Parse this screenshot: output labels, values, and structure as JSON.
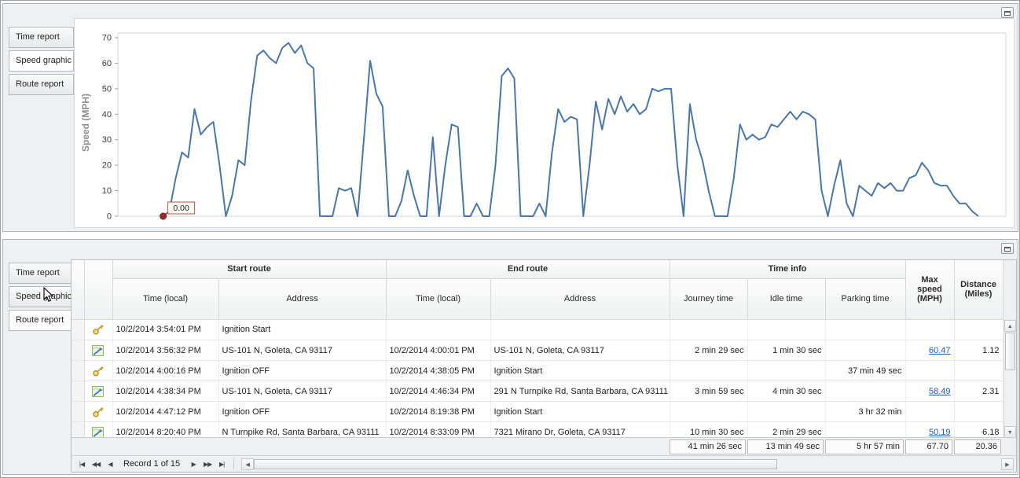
{
  "top_panel": {
    "tabs": [
      {
        "id": "time-report",
        "label": "Time report",
        "selected": false
      },
      {
        "id": "speed-graphic",
        "label": "Speed graphic",
        "selected": true
      },
      {
        "id": "route-report",
        "label": "Route report",
        "selected": false
      }
    ]
  },
  "chart_data": {
    "type": "line",
    "title": "",
    "xlabel": "",
    "ylabel": "Speed (MPH)",
    "ylim": [
      0,
      70
    ],
    "yticks": [
      0,
      10,
      20,
      30,
      40,
      50,
      60,
      70
    ],
    "grid": "off",
    "legend": "none",
    "series": [
      {
        "name": "Speed",
        "color": "#4a76a8",
        "values": [
          0,
          2,
          15,
          25,
          23,
          42,
          32,
          35,
          37,
          20,
          0,
          8,
          22,
          20,
          45,
          63,
          65,
          62,
          60,
          66,
          68,
          64,
          67,
          60,
          58,
          0,
          0,
          0,
          11,
          10,
          11,
          0,
          30,
          61,
          48,
          43,
          0,
          0,
          6,
          18,
          8,
          0,
          0,
          31,
          0,
          20,
          36,
          35,
          0,
          0,
          5,
          0,
          0,
          20,
          55,
          58,
          54,
          0,
          0,
          0,
          5,
          0,
          25,
          42,
          37,
          39,
          38,
          0,
          20,
          45,
          34,
          46,
          40,
          47,
          41,
          44,
          40,
          42,
          50,
          49,
          50,
          50,
          20,
          0,
          44,
          30,
          22,
          10,
          0,
          0,
          0,
          15,
          36,
          30,
          32,
          30,
          31,
          36,
          35,
          38,
          41,
          38,
          41,
          40,
          38,
          10,
          0,
          12,
          22,
          5,
          0,
          12,
          10,
          8,
          13,
          11,
          13,
          10,
          10,
          15,
          16,
          21,
          18,
          13,
          12,
          12,
          8,
          5,
          5,
          2,
          0
        ]
      }
    ],
    "annotation": {
      "label": "0.00",
      "point_index": 0,
      "marker_color": "#9e2b25"
    }
  },
  "bottom_panel": {
    "tabs": [
      {
        "id": "time-report",
        "label": "Time report",
        "selected": false
      },
      {
        "id": "speed-graphic",
        "label": "Speed graphic",
        "selected": false
      },
      {
        "id": "route-report",
        "label": "Route report",
        "selected": true
      }
    ],
    "grid": {
      "group_headers": [
        "Start route",
        "End route",
        "Time info"
      ],
      "columns": [
        "Time (local)",
        "Address",
        "Time (local)",
        "Address",
        "Journey time",
        "Idle time",
        "Parking time",
        "Max speed (MPH)",
        "Distance (Miles)"
      ],
      "rows": [
        {
          "type": "key",
          "max_speed_link": false,
          "cells": {
            "start_time": "10/2/2014 3:54:01 PM",
            "start_address": "Ignition Start",
            "end_time": "",
            "end_address": "",
            "journey_time": "",
            "idle_time": "",
            "parking_time": "",
            "max_speed": "",
            "distance": ""
          }
        },
        {
          "type": "route",
          "max_speed_link": true,
          "cells": {
            "start_time": "10/2/2014 3:56:32 PM",
            "start_address": "US-101 N, Goleta, CA 93117",
            "end_time": "10/2/2014 4:00:01 PM",
            "end_address": "US-101 N, Goleta, CA 93117",
            "journey_time": "2 min 29 sec",
            "idle_time": "1 min 30 sec",
            "parking_time": "",
            "max_speed": "60.47",
            "distance": "1.12"
          }
        },
        {
          "type": "key",
          "max_speed_link": false,
          "cells": {
            "start_time": "10/2/2014 4:00:16 PM",
            "start_address": "Ignition OFF",
            "end_time": "10/2/2014 4:38:05 PM",
            "end_address": "Ignition Start",
            "journey_time": "",
            "idle_time": "",
            "parking_time": "37 min 49 sec",
            "max_speed": "",
            "distance": ""
          }
        },
        {
          "type": "route",
          "max_speed_link": true,
          "cells": {
            "start_time": "10/2/2014 4:38:34 PM",
            "start_address": "US-101 N, Goleta, CA 93117",
            "end_time": "10/2/2014 4:46:34 PM",
            "end_address": "291 N Turnpike Rd, Santa Barbara, CA 93111",
            "journey_time": "3 min 59 sec",
            "idle_time": "4 min 30 sec",
            "parking_time": "",
            "max_speed": "58.49",
            "distance": "2.31"
          }
        },
        {
          "type": "key",
          "max_speed_link": false,
          "cells": {
            "start_time": "10/2/2014 4:47:12 PM",
            "start_address": "Ignition OFF",
            "end_time": "10/2/2014 8:19:38 PM",
            "end_address": "Ignition Start",
            "journey_time": "",
            "idle_time": "",
            "parking_time": "3 hr 32 min",
            "max_speed": "",
            "distance": ""
          }
        },
        {
          "type": "route",
          "max_speed_link": true,
          "cells": {
            "start_time": "10/2/2014 8:20:40 PM",
            "start_address": "N Turnpike Rd, Santa Barbara, CA 93111",
            "end_time": "10/2/2014 8:33:09 PM",
            "end_address": "7321 Mirano Dr, Goleta, CA 93117",
            "journey_time": "10 min 30 sec",
            "idle_time": "2 min 29 sec",
            "parking_time": "",
            "max_speed": "50.19",
            "distance": "6.18"
          }
        }
      ],
      "summary": {
        "journey_time": "41 min 26 sec",
        "idle_time": "13 min 49 sec",
        "parking_time": "5 hr 57 min",
        "max_speed": "67.70",
        "distance": "20.36"
      },
      "navigator": {
        "buttons": [
          "|◀",
          "◀◀",
          "◀",
          "▶",
          "▶▶",
          "▶|"
        ],
        "label": "Record 1 of 15"
      }
    }
  },
  "icons": {
    "scroll_up": "▲",
    "scroll_down": "▼",
    "scroll_left": "◀",
    "scroll_right": "▶"
  }
}
